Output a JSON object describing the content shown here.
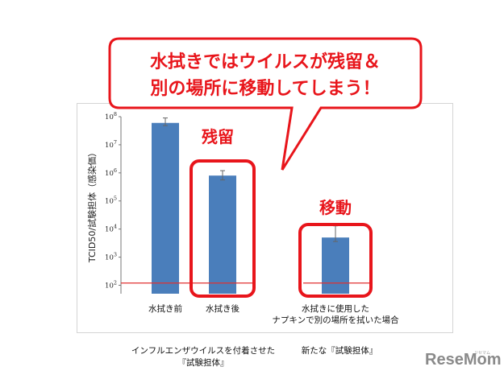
{
  "callout": {
    "line1": "水拭きではウイルスが残留＆",
    "line2": "別の場所に移動してしまう！"
  },
  "tags": {
    "residue": "残留",
    "transfer": "移動"
  },
  "group_labels": {
    "left_line1": "インフルエンザウイルスを付着させた",
    "left_line2": "『試験担体』",
    "right": "新たな『試験担体』"
  },
  "logo": {
    "main": "ReseMom",
    "sub": "リセマム"
  },
  "colors": {
    "bar": "#4a7ebb",
    "accent": "#e8151b",
    "detection_line": "#e03030"
  },
  "chart_data": {
    "type": "bar",
    "ylabel": "TCID50/試験担体（感染価）",
    "y_scale": "log",
    "ylim": [
      50,
      100000000
    ],
    "yticks": [
      {
        "value": 100,
        "base": "10",
        "exp": "2"
      },
      {
        "value": 1000,
        "base": "10",
        "exp": "3"
      },
      {
        "value": 10000,
        "base": "10",
        "exp": "4"
      },
      {
        "value": 100000,
        "base": "10",
        "exp": "5"
      },
      {
        "value": 1000000,
        "base": "10",
        "exp": "6"
      },
      {
        "value": 10000000,
        "base": "10",
        "exp": "7"
      },
      {
        "value": 100000000,
        "base": "10",
        "exp": "8"
      }
    ],
    "categories": [
      {
        "label_lines": [
          "水拭き前"
        ]
      },
      {
        "label_lines": [
          "水拭き後"
        ]
      },
      {
        "label_lines": [
          "水拭きに使用した",
          "ナプキンで別の場所を拭いた場合"
        ]
      }
    ],
    "values": [
      60000000,
      800000,
      5000
    ],
    "error_high": [
      90000000,
      1200000,
      13000
    ],
    "error_low": [
      48000000,
      560000,
      3600
    ],
    "detection_limit": 120
  }
}
